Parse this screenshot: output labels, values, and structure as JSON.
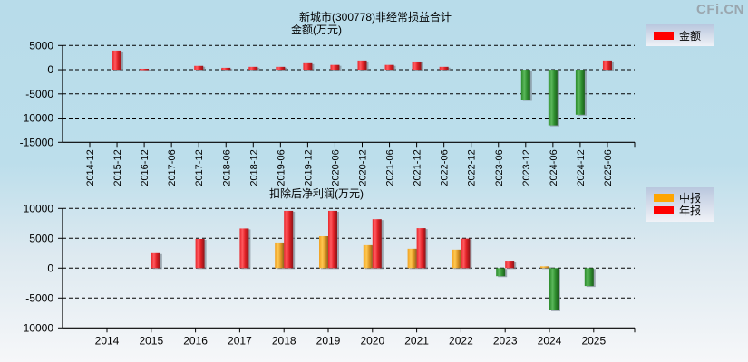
{
  "watermark": "CFi.CN",
  "chart_data": [
    {
      "type": "bar",
      "title": "新城市(300778)非经常损益合计",
      "subtitle": "金额(万元)",
      "xlabel": "",
      "ylabel": "金额(万元)",
      "ylim": [
        -15000,
        5000
      ],
      "yticks": [
        5000,
        0,
        -5000,
        -10000,
        -15000
      ],
      "grid": true,
      "legend_position": "top-right",
      "categories": [
        "2014-12",
        "2015-12",
        "2016-12",
        "2017-06",
        "2017-12",
        "2018-06",
        "2018-12",
        "2019-06",
        "2019-12",
        "2020-06",
        "2020-12",
        "2021-06",
        "2021-12",
        "2022-06",
        "2022-12",
        "2023-06",
        "2023-12",
        "2024-06",
        "2024-12",
        "2025-06"
      ],
      "series": [
        {
          "name": "金额",
          "color": "#ff0000",
          "negative_color": "#2e8b2e",
          "values": [
            null,
            3950,
            200,
            null,
            800,
            400,
            600,
            600,
            1350,
            1000,
            1900,
            1000,
            1700,
            600,
            null,
            null,
            -6250,
            -11500,
            -9300,
            1900
          ]
        }
      ]
    },
    {
      "type": "bar",
      "title": "扣除后净利润(万元)",
      "xlabel": "",
      "ylabel": "",
      "ylim": [
        -10000,
        10000
      ],
      "yticks": [
        10000,
        5000,
        0,
        -5000,
        -10000
      ],
      "grid": true,
      "legend_position": "top-right",
      "categories": [
        "2014",
        "2015",
        "2016",
        "2017",
        "2018",
        "2019",
        "2020",
        "2021",
        "2022",
        "2023",
        "2024",
        "2025"
      ],
      "series": [
        {
          "name": "中报",
          "color": "#ffa500",
          "negative_color": "#2e8b2e",
          "values": [
            null,
            null,
            null,
            null,
            4300,
            5350,
            3850,
            3250,
            3100,
            -1350,
            300,
            -3000
          ]
        },
        {
          "name": "年报",
          "color": "#ff0000",
          "negative_color": "#2e8b2e",
          "values": [
            null,
            2500,
            4900,
            6650,
            9600,
            9600,
            8200,
            6700,
            4950,
            1250,
            -7050,
            null
          ]
        }
      ]
    }
  ]
}
